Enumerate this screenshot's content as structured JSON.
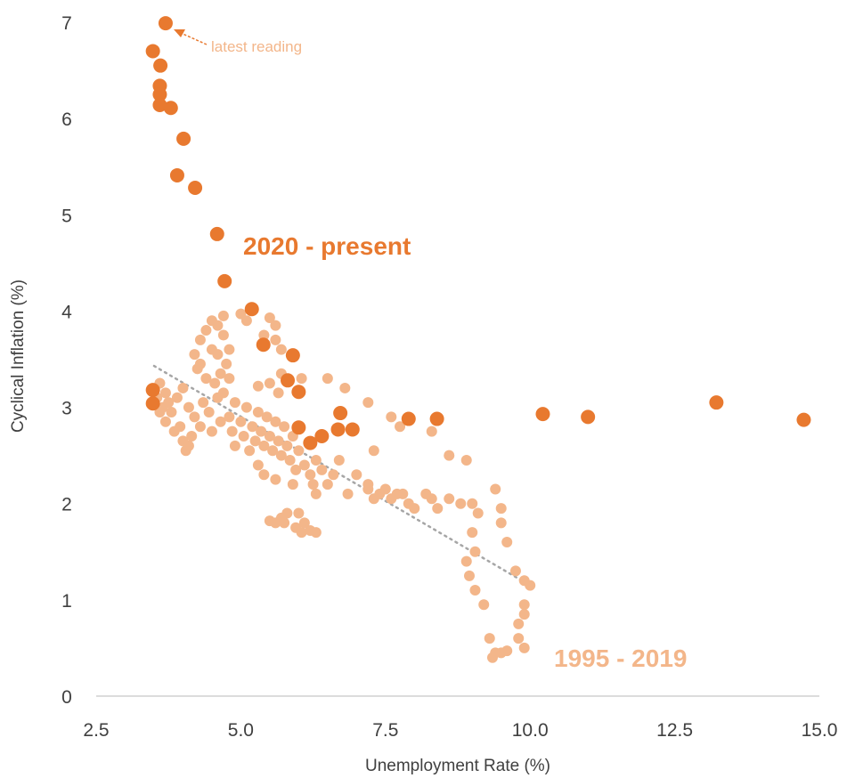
{
  "chart_data": {
    "type": "scatter",
    "title": "",
    "xlabel": "Unemployment Rate (%)",
    "ylabel": "Cyclical Inflation (%)",
    "xlim": [
      2.5,
      15.0
    ],
    "ylim": [
      0,
      7
    ],
    "xticks": [
      "2.5",
      "5.0",
      "7.5",
      "10.0",
      "12.5",
      "15.0"
    ],
    "yticks": [
      "0",
      "1",
      "2",
      "3",
      "4",
      "5",
      "6",
      "7"
    ],
    "grid": false,
    "colors": {
      "recent": "#E8792F",
      "historical": "#F3B68A",
      "trend": "#A6A6A6"
    },
    "annotation": {
      "text": "latest reading",
      "x": 3.7,
      "y": 6.99
    },
    "series": [
      {
        "name": "2020 - present",
        "points": [
          [
            3.7,
            6.99
          ],
          [
            3.48,
            6.7
          ],
          [
            3.61,
            6.55
          ],
          [
            3.6,
            6.34
          ],
          [
            3.6,
            6.25
          ],
          [
            3.6,
            6.14
          ],
          [
            3.79,
            6.11
          ],
          [
            4.01,
            5.79
          ],
          [
            3.9,
            5.41
          ],
          [
            4.21,
            5.28
          ],
          [
            4.59,
            4.8
          ],
          [
            4.72,
            4.31
          ],
          [
            5.19,
            4.02
          ],
          [
            5.39,
            3.65
          ],
          [
            5.9,
            3.54
          ],
          [
            5.81,
            3.28
          ],
          [
            6.0,
            3.16
          ],
          [
            3.48,
            3.18
          ],
          [
            3.48,
            3.04
          ],
          [
            6.0,
            2.79
          ],
          [
            6.72,
            2.94
          ],
          [
            6.68,
            2.77
          ],
          [
            6.93,
            2.77
          ],
          [
            6.4,
            2.7
          ],
          [
            6.2,
            2.63
          ],
          [
            7.9,
            2.88
          ],
          [
            8.39,
            2.88
          ],
          [
            10.22,
            2.93
          ],
          [
            11.0,
            2.9
          ],
          [
            13.22,
            3.05
          ],
          [
            14.73,
            2.87
          ]
        ]
      },
      {
        "name": "1995 - 2019",
        "points": [
          [
            4.3,
            3.7
          ],
          [
            4.4,
            3.8
          ],
          [
            4.5,
            3.9
          ],
          [
            4.6,
            3.85
          ],
          [
            4.7,
            3.95
          ],
          [
            4.5,
            3.6
          ],
          [
            4.3,
            3.45
          ],
          [
            4.2,
            3.55
          ],
          [
            4.25,
            3.4
          ],
          [
            4.4,
            3.3
          ],
          [
            4.6,
            3.55
          ],
          [
            4.7,
            3.75
          ],
          [
            4.8,
            3.6
          ],
          [
            4.75,
            3.45
          ],
          [
            4.65,
            3.35
          ],
          [
            4.55,
            3.25
          ],
          [
            4.8,
            3.3
          ],
          [
            5.0,
            3.97
          ],
          [
            5.1,
            3.9
          ],
          [
            5.5,
            3.93
          ],
          [
            5.6,
            3.85
          ],
          [
            5.4,
            3.75
          ],
          [
            5.6,
            3.7
          ],
          [
            5.7,
            3.6
          ],
          [
            5.7,
            3.35
          ],
          [
            5.5,
            3.25
          ],
          [
            5.3,
            3.22
          ],
          [
            5.65,
            3.15
          ],
          [
            6.05,
            3.3
          ],
          [
            3.6,
            3.25
          ],
          [
            3.7,
            3.15
          ],
          [
            3.65,
            3.0
          ],
          [
            3.8,
            2.95
          ],
          [
            3.7,
            2.85
          ],
          [
            3.9,
            3.1
          ],
          [
            3.95,
            2.8
          ],
          [
            4.0,
            2.65
          ],
          [
            4.05,
            2.55
          ],
          [
            4.1,
            2.6
          ],
          [
            4.0,
            3.2
          ],
          [
            4.1,
            3.0
          ],
          [
            4.2,
            2.9
          ],
          [
            4.3,
            2.8
          ],
          [
            4.35,
            3.05
          ],
          [
            4.45,
            2.95
          ],
          [
            4.5,
            2.75
          ],
          [
            4.6,
            3.1
          ],
          [
            4.65,
            2.85
          ],
          [
            4.7,
            3.15
          ],
          [
            4.8,
            2.9
          ],
          [
            4.85,
            2.75
          ],
          [
            4.9,
            3.05
          ],
          [
            5.0,
            2.85
          ],
          [
            5.05,
            2.7
          ],
          [
            5.1,
            3.0
          ],
          [
            5.2,
            2.8
          ],
          [
            5.25,
            2.65
          ],
          [
            5.3,
            2.95
          ],
          [
            5.35,
            2.75
          ],
          [
            5.4,
            2.6
          ],
          [
            5.45,
            2.9
          ],
          [
            5.5,
            2.7
          ],
          [
            5.55,
            2.55
          ],
          [
            5.6,
            2.85
          ],
          [
            5.65,
            2.65
          ],
          [
            5.7,
            2.5
          ],
          [
            5.75,
            2.8
          ],
          [
            5.8,
            2.6
          ],
          [
            5.85,
            2.45
          ],
          [
            5.9,
            2.7
          ],
          [
            5.95,
            2.35
          ],
          [
            6.0,
            2.55
          ],
          [
            6.1,
            2.4
          ],
          [
            6.2,
            2.3
          ],
          [
            6.3,
            2.45
          ],
          [
            5.3,
            2.4
          ],
          [
            5.4,
            2.3
          ],
          [
            5.6,
            2.25
          ],
          [
            5.9,
            2.2
          ],
          [
            6.25,
            2.2
          ],
          [
            6.4,
            2.35
          ],
          [
            6.5,
            2.2
          ],
          [
            6.3,
            2.1
          ],
          [
            5.5,
            1.82
          ],
          [
            5.6,
            1.8
          ],
          [
            5.7,
            1.85
          ],
          [
            5.75,
            1.8
          ],
          [
            5.8,
            1.9
          ],
          [
            6.0,
            1.9
          ],
          [
            5.95,
            1.75
          ],
          [
            6.05,
            1.7
          ],
          [
            6.1,
            1.8
          ],
          [
            6.2,
            1.72
          ],
          [
            6.3,
            1.7
          ],
          [
            7.2,
            2.15
          ],
          [
            7.3,
            2.05
          ],
          [
            7.4,
            2.1
          ],
          [
            7.5,
            2.15
          ],
          [
            7.6,
            2.05
          ],
          [
            7.7,
            2.1
          ],
          [
            7.8,
            2.1
          ],
          [
            7.9,
            2.0
          ],
          [
            8.0,
            1.95
          ],
          [
            8.2,
            2.1
          ],
          [
            8.3,
            2.05
          ],
          [
            8.4,
            1.95
          ],
          [
            8.6,
            2.05
          ],
          [
            8.8,
            2.0
          ],
          [
            9.0,
            2.0
          ],
          [
            9.1,
            1.9
          ],
          [
            9.0,
            1.7
          ],
          [
            9.05,
            1.5
          ],
          [
            8.9,
            1.4
          ],
          [
            8.95,
            1.25
          ],
          [
            9.05,
            1.1
          ],
          [
            9.2,
            0.95
          ],
          [
            9.3,
            0.6
          ],
          [
            9.4,
            0.45
          ],
          [
            9.35,
            0.4
          ],
          [
            9.5,
            0.45
          ],
          [
            9.6,
            0.47
          ],
          [
            9.8,
            0.6
          ],
          [
            9.9,
            0.5
          ],
          [
            9.8,
            0.75
          ],
          [
            9.9,
            0.85
          ],
          [
            9.9,
            0.95
          ],
          [
            9.75,
            1.3
          ],
          [
            9.9,
            1.2
          ],
          [
            10.0,
            1.15
          ],
          [
            9.6,
            1.6
          ],
          [
            9.5,
            1.8
          ],
          [
            9.5,
            1.95
          ],
          [
            9.4,
            2.15
          ],
          [
            8.6,
            2.5
          ],
          [
            8.9,
            2.45
          ],
          [
            7.2,
            2.2
          ],
          [
            7.0,
            2.3
          ],
          [
            6.85,
            2.1
          ],
          [
            6.6,
            2.3
          ],
          [
            6.7,
            2.45
          ],
          [
            7.3,
            2.55
          ],
          [
            7.6,
            2.9
          ],
          [
            7.75,
            2.8
          ],
          [
            8.3,
            2.75
          ],
          [
            7.2,
            3.05
          ],
          [
            6.8,
            3.2
          ],
          [
            6.5,
            3.3
          ],
          [
            3.55,
            3.1
          ],
          [
            3.6,
            2.95
          ],
          [
            3.75,
            3.05
          ],
          [
            3.85,
            2.75
          ],
          [
            4.15,
            2.7
          ],
          [
            4.9,
            2.6
          ],
          [
            5.15,
            2.55
          ]
        ]
      }
    ],
    "trendline": {
      "name": "trend",
      "from": [
        3.5,
        3.43
      ],
      "to": [
        10.0,
        1.15
      ]
    },
    "series_labels": {
      "recent": "2020 - present",
      "historical": "1995 - 2019"
    }
  }
}
